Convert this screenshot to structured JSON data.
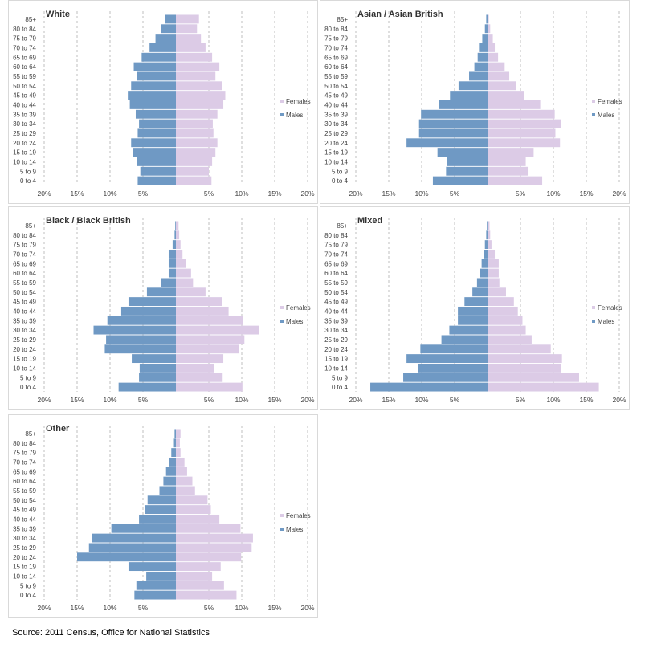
{
  "colors": {
    "males": "#6f99c4",
    "females": "#dccbe6",
    "grid": "#bfbfbf",
    "tick_text": "#404040"
  },
  "source": "Source: 2011 Census, Office for National Statistics",
  "chart_data": [
    {
      "type": "bar",
      "orientation": "horizontal",
      "title": "White",
      "categories": [
        "0 to 4",
        "5 to 9",
        "10 to 14",
        "15 to 19",
        "20 to 24",
        "25 to 29",
        "30 to 34",
        "35 to 39",
        "40 to 44",
        "45 to 49",
        "50 to 54",
        "55 to 59",
        "60 to 64",
        "65 to 69",
        "70 to 74",
        "75 to 79",
        "80 to 84",
        "85+"
      ],
      "series": [
        {
          "name": "Males",
          "values": [
            5.8,
            5.4,
            5.9,
            6.5,
            6.8,
            5.8,
            5.6,
            6.1,
            7.0,
            7.3,
            6.8,
            5.9,
            6.4,
            5.2,
            4.0,
            3.1,
            2.2,
            1.6
          ]
        },
        {
          "name": "Females",
          "values": [
            5.4,
            5.0,
            5.5,
            6.0,
            6.3,
            5.7,
            5.6,
            6.3,
            7.2,
            7.5,
            7.0,
            6.0,
            6.6,
            5.5,
            4.5,
            3.8,
            3.2,
            3.5
          ]
        }
      ],
      "xticks": [
        "20%",
        "15%",
        "10%",
        "5%",
        "",
        "5%",
        "10%",
        "15%",
        "20%"
      ],
      "xlim": [
        -20,
        20
      ],
      "grid": true,
      "legend": "right"
    },
    {
      "type": "bar",
      "orientation": "horizontal",
      "title": "Asian / Asian British",
      "categories": [
        "0 to 4",
        "5 to 9",
        "10 to 14",
        "15 to 19",
        "20 to 24",
        "25 to 29",
        "30 to 34",
        "35 to 39",
        "40 to 44",
        "45 to 49",
        "50 to 54",
        "55 to 59",
        "60 to 64",
        "65 to 69",
        "70 to 74",
        "75 to 79",
        "80 to 84",
        "85+"
      ],
      "series": [
        {
          "name": "Males",
          "values": [
            8.3,
            6.3,
            6.2,
            7.6,
            12.3,
            10.4,
            10.4,
            10.1,
            7.4,
            5.7,
            4.4,
            2.8,
            2.0,
            1.5,
            1.3,
            0.8,
            0.4,
            0.2
          ]
        },
        {
          "name": "Females",
          "values": [
            8.3,
            6.1,
            5.8,
            7.0,
            11.0,
            10.3,
            11.1,
            10.2,
            8.0,
            5.6,
            4.3,
            3.3,
            2.6,
            1.6,
            1.1,
            0.8,
            0.4,
            0.2
          ]
        }
      ],
      "xticks": [
        "20%",
        "15%",
        "10%",
        "5%",
        "",
        "5%",
        "10%",
        "15%",
        "20%"
      ],
      "xlim": [
        -20,
        20
      ],
      "grid": true,
      "legend": "right"
    },
    {
      "type": "bar",
      "orientation": "horizontal",
      "title": "Black / Black British",
      "categories": [
        "0 to 4",
        "5 to 9",
        "10 to 14",
        "15 to 19",
        "20 to 24",
        "25 to 29",
        "30 to 34",
        "35 to 39",
        "40 to 44",
        "45 to 49",
        "50 to 54",
        "55 to 59",
        "60 to 64",
        "65 to 69",
        "70 to 74",
        "75 to 79",
        "80 to 84",
        "85+"
      ],
      "series": [
        {
          "name": "Males",
          "values": [
            8.7,
            5.6,
            5.5,
            6.7,
            10.8,
            10.6,
            12.5,
            10.4,
            8.3,
            7.2,
            4.4,
            2.3,
            1.1,
            1.1,
            1.1,
            0.5,
            0.2,
            0.1
          ]
        },
        {
          "name": "Females",
          "values": [
            10.1,
            7.1,
            5.8,
            7.2,
            9.6,
            10.4,
            12.6,
            10.2,
            8.0,
            7.0,
            4.5,
            2.6,
            2.3,
            1.5,
            1.0,
            0.7,
            0.5,
            0.4
          ]
        }
      ],
      "xticks": [
        "20%",
        "15%",
        "10%",
        "5%",
        "",
        "5%",
        "10%",
        "15%",
        "20%"
      ],
      "xlim": [
        -20,
        20
      ],
      "grid": true,
      "legend": "right"
    },
    {
      "type": "bar",
      "orientation": "horizontal",
      "title": "Mixed",
      "categories": [
        "0 to 4",
        "5 to 9",
        "10 to 14",
        "15 to 19",
        "20 to 24",
        "25 to 29",
        "30 to 34",
        "35 to 39",
        "40 to 44",
        "45 to 49",
        "50 to 54",
        "55 to 59",
        "60 to 64",
        "65 to 69",
        "70 to 74",
        "75 to 79",
        "80 to 84",
        "85+"
      ],
      "series": [
        {
          "name": "Males",
          "values": [
            17.8,
            12.8,
            10.6,
            12.3,
            10.2,
            7.0,
            5.8,
            4.5,
            4.5,
            3.5,
            2.3,
            1.6,
            1.2,
            0.9,
            0.6,
            0.4,
            0.2,
            0.1
          ]
        },
        {
          "name": "Females",
          "values": [
            16.9,
            13.9,
            11.1,
            11.3,
            9.6,
            6.7,
            5.8,
            5.3,
            4.6,
            4.0,
            2.8,
            1.8,
            1.7,
            1.7,
            1.1,
            0.6,
            0.4,
            0.3
          ]
        }
      ],
      "xticks": [
        "20%",
        "15%",
        "10%",
        "5%",
        "",
        "5%",
        "10%",
        "15%",
        "20%"
      ],
      "xlim": [
        -20,
        20
      ],
      "grid": true,
      "legend": "right"
    },
    {
      "type": "bar",
      "orientation": "horizontal",
      "title": "Other",
      "categories": [
        "0 to 4",
        "5 to 9",
        "10 to 14",
        "15 to 19",
        "20 to 24",
        "25 to 29",
        "30 to 34",
        "35 to 39",
        "40 to 44",
        "45 to 49",
        "50 to 54",
        "55 to 59",
        "60 to 64",
        "65 to 69",
        "70 to 74",
        "75 to 79",
        "80 to 84",
        "85+"
      ],
      "series": [
        {
          "name": "Males",
          "values": [
            6.3,
            6.0,
            4.5,
            7.2,
            15.0,
            13.2,
            12.8,
            9.8,
            5.6,
            4.7,
            4.3,
            2.5,
            1.9,
            1.5,
            1.0,
            0.7,
            0.3,
            0.2
          ]
        },
        {
          "name": "Females",
          "values": [
            9.2,
            7.3,
            5.5,
            6.8,
            9.9,
            11.5,
            11.7,
            9.8,
            6.6,
            5.3,
            4.8,
            2.9,
            2.5,
            1.7,
            1.3,
            0.7,
            0.6,
            0.7
          ]
        }
      ],
      "xticks": [
        "20%",
        "15%",
        "10%",
        "5%",
        "",
        "5%",
        "10%",
        "15%",
        "20%"
      ],
      "xlim": [
        -20,
        20
      ],
      "grid": true,
      "legend": "right"
    }
  ]
}
